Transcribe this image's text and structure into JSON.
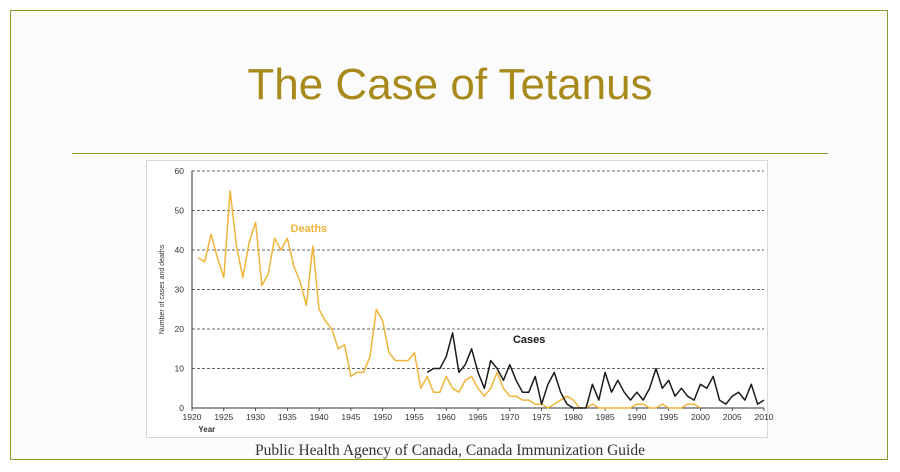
{
  "slide": {
    "title": "The Case of Tetanus",
    "source": "Public Health Agency of Canada, Canada Immunization Guide"
  },
  "colors": {
    "accent": "#a88a1c",
    "rule": "#8a9a2f",
    "deaths": "#f0b43a",
    "cases": "#1a1a1a"
  },
  "chart_data": {
    "type": "line",
    "xlabel": "Year",
    "ylabel": "Number of cases and deaths",
    "xlim": [
      1920,
      2010
    ],
    "ylim": [
      0,
      60
    ],
    "x_ticks": [
      1920,
      1925,
      1930,
      1935,
      1940,
      1945,
      1950,
      1955,
      1960,
      1965,
      1970,
      1975,
      1980,
      1985,
      1990,
      1995,
      2000,
      2005,
      2010
    ],
    "y_ticks": [
      0,
      10,
      20,
      30,
      40,
      50,
      60
    ],
    "grid": "horizontal dashed",
    "series": [
      {
        "name": "Deaths",
        "color": "#f0b43a",
        "x": [
          1921,
          1922,
          1923,
          1924,
          1925,
          1926,
          1927,
          1928,
          1929,
          1930,
          1931,
          1932,
          1933,
          1934,
          1935,
          1936,
          1937,
          1938,
          1939,
          1940,
          1941,
          1942,
          1943,
          1944,
          1945,
          1946,
          1947,
          1948,
          1949,
          1950,
          1951,
          1952,
          1953,
          1954,
          1955,
          1956,
          1957,
          1958,
          1959,
          1960,
          1961,
          1962,
          1963,
          1964,
          1965,
          1966,
          1967,
          1968,
          1969,
          1970,
          1971,
          1972,
          1973,
          1974,
          1975,
          1976,
          1977,
          1978,
          1979,
          1980,
          1981,
          1982,
          1983,
          1984,
          1985,
          1986,
          1987,
          1988,
          1989,
          1990,
          1991,
          1992,
          1993,
          1994,
          1995,
          1996,
          1997,
          1998,
          1999,
          2000
        ],
        "y": [
          38,
          37,
          44,
          38,
          33,
          55,
          41,
          33,
          42,
          47,
          31,
          34,
          43,
          40,
          43,
          36,
          32,
          26,
          41,
          25,
          22,
          20,
          15,
          16,
          8,
          9,
          9,
          13,
          25,
          22,
          14,
          12,
          12,
          12,
          14,
          5,
          8,
          4,
          4,
          8,
          5,
          4,
          7,
          8,
          5,
          3,
          5,
          9,
          5,
          3,
          3,
          2,
          2,
          1,
          1,
          0,
          1,
          2,
          3,
          2,
          0,
          0,
          1,
          0,
          0,
          0,
          0,
          0,
          0,
          1,
          1,
          0,
          0,
          1,
          0,
          0,
          0,
          1,
          1,
          0
        ]
      },
      {
        "name": "Cases",
        "color": "#1a1a1a",
        "x": [
          1957,
          1958,
          1959,
          1960,
          1961,
          1962,
          1963,
          1964,
          1965,
          1966,
          1967,
          1968,
          1969,
          1970,
          1971,
          1972,
          1973,
          1974,
          1975,
          1976,
          1977,
          1978,
          1979,
          1980,
          1981,
          1982,
          1983,
          1984,
          1985,
          1986,
          1987,
          1988,
          1989,
          1990,
          1991,
          1992,
          1993,
          1994,
          1995,
          1996,
          1997,
          1998,
          1999,
          2000,
          2001,
          2002,
          2003,
          2004,
          2005,
          2006,
          2007,
          2008,
          2009,
          2010
        ],
        "y": [
          9,
          10,
          10,
          13,
          19,
          9,
          11,
          15,
          9,
          5,
          12,
          10,
          7,
          11,
          7,
          4,
          4,
          8,
          1,
          6,
          9,
          4,
          1,
          0,
          0,
          0,
          6,
          2,
          9,
          4,
          7,
          4,
          2,
          4,
          2,
          5,
          10,
          5,
          7,
          3,
          5,
          3,
          2,
          6,
          5,
          8,
          2,
          1,
          3,
          4,
          2,
          6,
          1,
          2
        ]
      }
    ],
    "annotations": [
      {
        "text": "Deaths",
        "series": "Deaths"
      },
      {
        "text": "Cases",
        "series": "Cases"
      }
    ]
  }
}
